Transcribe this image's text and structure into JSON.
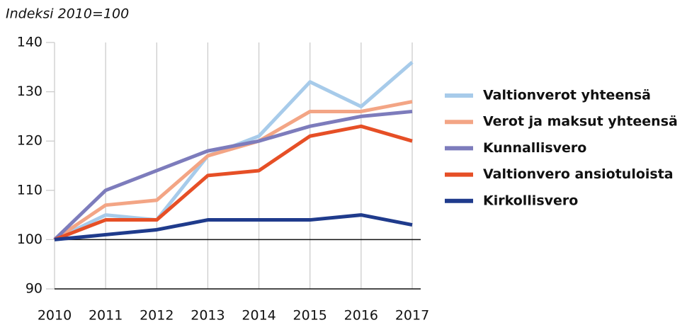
{
  "chart_data": {
    "type": "line",
    "title": "Indeksi 2010=100",
    "categories": [
      "2010",
      "2011",
      "2012",
      "2013",
      "2014",
      "2015",
      "2016",
      "2017"
    ],
    "series": [
      {
        "name": "Valtionverot yhteensä",
        "color": "#a7cbea",
        "values": [
          100,
          105,
          104,
          117,
          121,
          132,
          127,
          136
        ]
      },
      {
        "name": "Verot ja maksut yhteensä",
        "color": "#f3a585",
        "values": [
          100,
          107,
          108,
          117,
          120,
          126,
          126,
          128
        ]
      },
      {
        "name": "Kunnallisvero",
        "color": "#7d7cbc",
        "values": [
          100,
          110,
          114,
          118,
          120,
          123,
          125,
          126
        ]
      },
      {
        "name": "Valtionvero ansiotuloista",
        "color": "#e64f26",
        "values": [
          100,
          104,
          104,
          113,
          114,
          121,
          123,
          120
        ]
      },
      {
        "name": "Kirkollisvero",
        "color": "#1f3b8c",
        "values": [
          100,
          101,
          102,
          104,
          104,
          104,
          105,
          103
        ]
      }
    ],
    "ylim": [
      90,
      140
    ],
    "yticks": [
      90,
      100,
      110,
      120,
      130,
      140
    ],
    "baseline": 100,
    "grid": "x",
    "legend": "right"
  }
}
